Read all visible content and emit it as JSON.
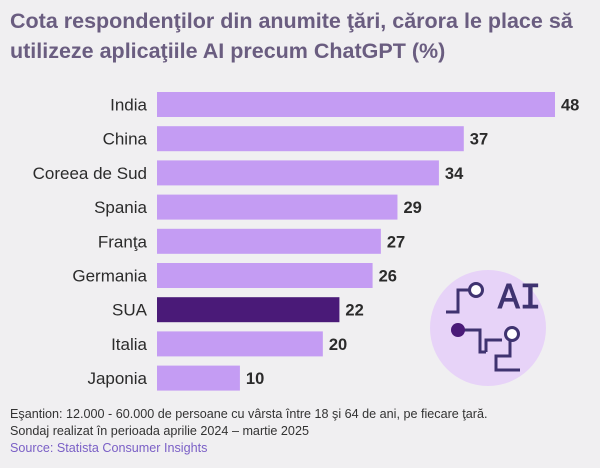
{
  "title": "Cota respondenţilor din anumite ţări, cărora le place să utilizeze aplicaţiile AI precum ChatGPT (%)",
  "footer": {
    "note_line1": "Eşantion: 12.000 - 60.000 de persoane cu vârsta între 18 şi 64 de ani, pe fiecare ţară.",
    "note_line2": "Sondaj realizat în perioada aprilie 2024 – martie 2025",
    "source": "Source: Statista Consumer Insights"
  },
  "icon": {
    "name": "ai-circuit-icon",
    "text": "AI"
  },
  "colors": {
    "bar": "#c49cf3",
    "highlight": "#4a1a78",
    "title": "#6a5d80",
    "icon_circle": "#e7d3f8",
    "icon_stroke": "#3f3370"
  },
  "chart_data": {
    "type": "bar",
    "orientation": "horizontal",
    "categories": [
      "India",
      "China",
      "Coreea de Sud",
      "Spania",
      "Franţa",
      "Germania",
      "SUA",
      "Italia",
      "Japonia"
    ],
    "values": [
      48,
      37,
      34,
      29,
      27,
      26,
      22,
      20,
      10
    ],
    "highlight": "SUA",
    "title": "Cota respondenţilor din anumite ţări, cărora le place să utilizeze aplicaţiile AI precum ChatGPT (%)",
    "xlabel": "",
    "ylabel": "",
    "grid": false,
    "data_labels": true
  }
}
